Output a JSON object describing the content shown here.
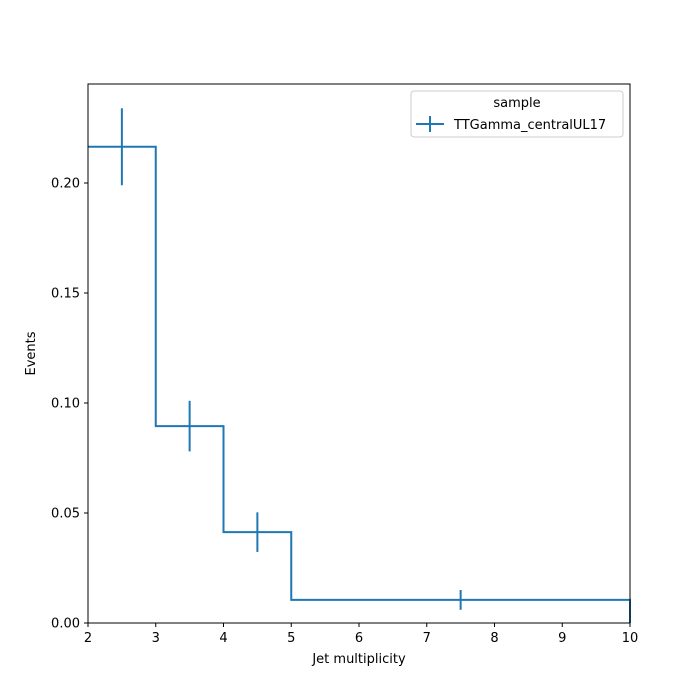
{
  "chart_data": {
    "type": "histogram-step",
    "xlabel": "Jet multiplicity",
    "ylabel": "Events",
    "xlim": [
      2,
      10
    ],
    "ylim": [
      0,
      0.245
    ],
    "xticks": [
      "2",
      "3",
      "4",
      "5",
      "6",
      "7",
      "8",
      "9",
      "10"
    ],
    "yticks": [
      "0.00",
      "0.05",
      "0.10",
      "0.15",
      "0.20"
    ],
    "ytick_values": [
      0,
      0.05,
      0.1,
      0.15,
      0.2
    ],
    "legend": {
      "title": "sample",
      "placement": "top-right"
    },
    "series": [
      {
        "name": "TTGamma_centralUL17",
        "color": "#1f77b4",
        "bins": [
          {
            "lo": 2,
            "hi": 3,
            "value": 0.2165,
            "err": 0.0175
          },
          {
            "lo": 3,
            "hi": 4,
            "value": 0.0895,
            "err": 0.0115
          },
          {
            "lo": 4,
            "hi": 5,
            "value": 0.0413,
            "err": 0.009
          },
          {
            "lo": 5,
            "hi": 10,
            "value": 0.0105,
            "err": 0.0045
          }
        ]
      }
    ]
  }
}
